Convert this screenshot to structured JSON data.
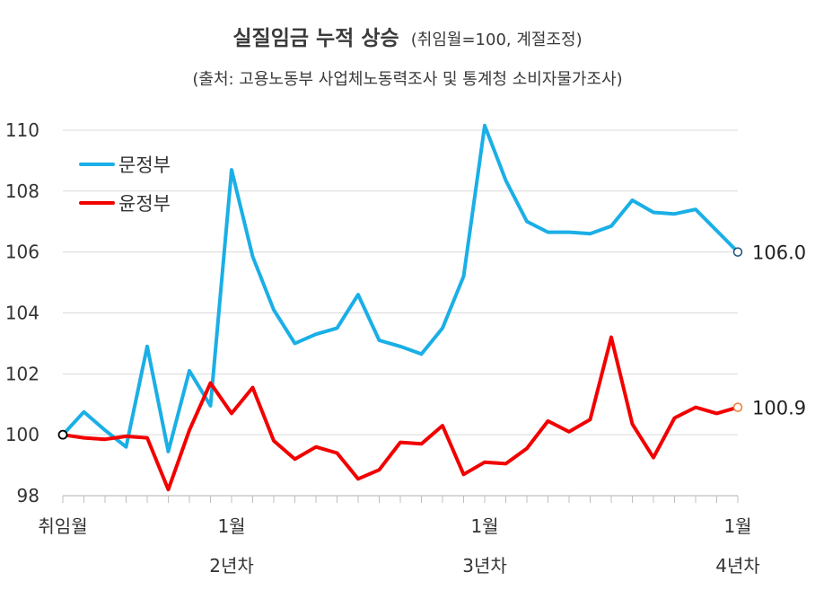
{
  "chart_data": {
    "type": "line",
    "title": "실질임금 누적 상승",
    "title_note": "(취임월=100, 계절조정)",
    "subtitle": "(출처: 고용노동부 사업체노동력조사 및 통계청 소비자물가조사)",
    "y_ticks": [
      "98",
      "100",
      "102",
      "104",
      "106",
      "108",
      "110"
    ],
    "ylim": [
      98,
      110.5
    ],
    "x_labels": [
      {
        "month": 0,
        "line1": "취임월",
        "line2": ""
      },
      {
        "month": 8,
        "line1": "1월",
        "line2": "2년차"
      },
      {
        "month": 20,
        "line1": "1월",
        "line2": "3년차"
      },
      {
        "month": 32,
        "line1": "1월",
        "line2": "4년차"
      }
    ],
    "n_months": 33,
    "grid": true,
    "legend_position": "top-left",
    "series": [
      {
        "name": "문정부",
        "color": "#1AAFE6",
        "values": [
          100.0,
          100.75,
          100.15,
          99.6,
          102.9,
          99.45,
          102.1,
          100.95,
          108.7,
          105.85,
          104.1,
          103.0,
          103.3,
          103.5,
          104.6,
          103.1,
          102.9,
          102.65,
          103.5,
          105.2,
          110.15,
          108.35,
          107.0,
          106.65,
          106.65,
          106.6,
          106.85,
          107.7,
          107.3,
          107.25,
          107.4,
          106.7,
          106.0
        ],
        "end_label": "106.0"
      },
      {
        "name": "윤정부",
        "color": "#F20000",
        "values": [
          100.0,
          99.9,
          99.85,
          99.95,
          99.9,
          98.2,
          100.15,
          101.7,
          100.7,
          101.55,
          99.8,
          99.2,
          99.6,
          99.4,
          98.55,
          98.85,
          99.75,
          99.7,
          100.3,
          98.7,
          99.1,
          99.05,
          99.55,
          100.45,
          100.1,
          100.5,
          103.2,
          100.35,
          99.25,
          100.55,
          100.9,
          100.7,
          100.9
        ],
        "end_label": "100.9"
      }
    ]
  }
}
